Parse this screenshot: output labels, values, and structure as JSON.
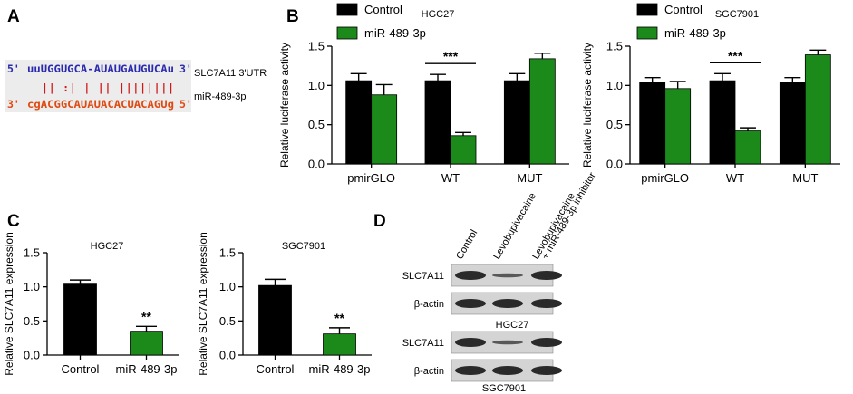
{
  "panels": {
    "A": "A",
    "B": "B",
    "C": "C",
    "D": "D"
  },
  "panel_a": {
    "top_prime5": "5'",
    "top_seq": "uuUGGUGCA-AUAUGAUGUCAu",
    "top_prime3": "3'",
    "top_label": "SLC7A11 3'UTR",
    "pairing": "|| :| | || ||||||||",
    "bottom_prime3": "3'",
    "bottom_seq": "cgACGGCAUAUACACUACAGUg",
    "bottom_prime5": "5'",
    "bottom_label": "miR-489-3p"
  },
  "panel_d": {
    "lanes": [
      "Control",
      "Levobupivacaine",
      "Levobupivacaine\n+ miR-489-3p inhibitor"
    ],
    "blot1_label": "HGC27",
    "blot2_label": "SGC7901",
    "rows": [
      "SLC7A11",
      "β-actin"
    ]
  },
  "colors": {
    "control": "#000000",
    "mir": "#1b8a1b",
    "seq_top": "#2a2ab0",
    "seq_bottom": "#e04a12",
    "pairing": "#d01818",
    "seq_bg": "#ececec"
  },
  "chart_data": [
    {
      "id": "B-HGC27",
      "type": "bar",
      "title": "HGC27",
      "ylabel": "Relative luciferase activity",
      "xlabel": "",
      "ylim": [
        0,
        1.5
      ],
      "yticks": [
        "0.0",
        "0.5",
        "1.0",
        "1.5"
      ],
      "categories": [
        "pmirGLO",
        "WT",
        "MUT"
      ],
      "legend": [
        "Control",
        "miR-489-3p"
      ],
      "series": [
        {
          "name": "Control",
          "values": [
            1.06,
            1.06,
            1.06
          ],
          "errors": [
            0.09,
            0.08,
            0.09
          ]
        },
        {
          "name": "miR-489-3p",
          "values": [
            0.88,
            0.36,
            1.34
          ],
          "errors": [
            0.13,
            0.04,
            0.07
          ]
        }
      ],
      "annotations": [
        {
          "category": "WT",
          "text": "***"
        }
      ]
    },
    {
      "id": "B-SGC7901",
      "type": "bar",
      "title": "SGC7901",
      "ylabel": "Relative luciferase activity",
      "xlabel": "",
      "ylim": [
        0,
        1.5
      ],
      "yticks": [
        "0.0",
        "0.5",
        "1.0",
        "1.5"
      ],
      "categories": [
        "pmirGLO",
        "WT",
        "MUT"
      ],
      "legend": [
        "Control",
        "miR-489-3p"
      ],
      "series": [
        {
          "name": "Control",
          "values": [
            1.04,
            1.06,
            1.04
          ],
          "errors": [
            0.06,
            0.09,
            0.06
          ]
        },
        {
          "name": "miR-489-3p",
          "values": [
            0.96,
            0.42,
            1.39
          ],
          "errors": [
            0.09,
            0.04,
            0.06
          ]
        }
      ],
      "annotations": [
        {
          "category": "WT",
          "text": "***"
        }
      ]
    },
    {
      "id": "C-HGC27",
      "type": "bar",
      "title": "HGC27",
      "ylabel": "Relative SLC7A11 expression",
      "xlabel": "",
      "ylim": [
        0,
        1.5
      ],
      "yticks": [
        "0.0",
        "0.5",
        "1.0",
        "1.5"
      ],
      "categories": [
        "Control",
        "miR-489-3p"
      ],
      "values": [
        1.04,
        0.35
      ],
      "errors": [
        0.06,
        0.07
      ],
      "annotations": [
        {
          "category": "miR-489-3p",
          "text": "**"
        }
      ]
    },
    {
      "id": "C-SGC7901",
      "type": "bar",
      "title": "SGC7901",
      "ylabel": "Relative SLC7A11 expression",
      "xlabel": "",
      "ylim": [
        0,
        1.5
      ],
      "yticks": [
        "0.0",
        "0.5",
        "1.0",
        "1.5"
      ],
      "categories": [
        "Control",
        "miR-489-3p"
      ],
      "values": [
        1.02,
        0.31
      ],
      "errors": [
        0.09,
        0.09
      ],
      "annotations": [
        {
          "category": "miR-489-3p",
          "text": "**"
        }
      ]
    }
  ]
}
